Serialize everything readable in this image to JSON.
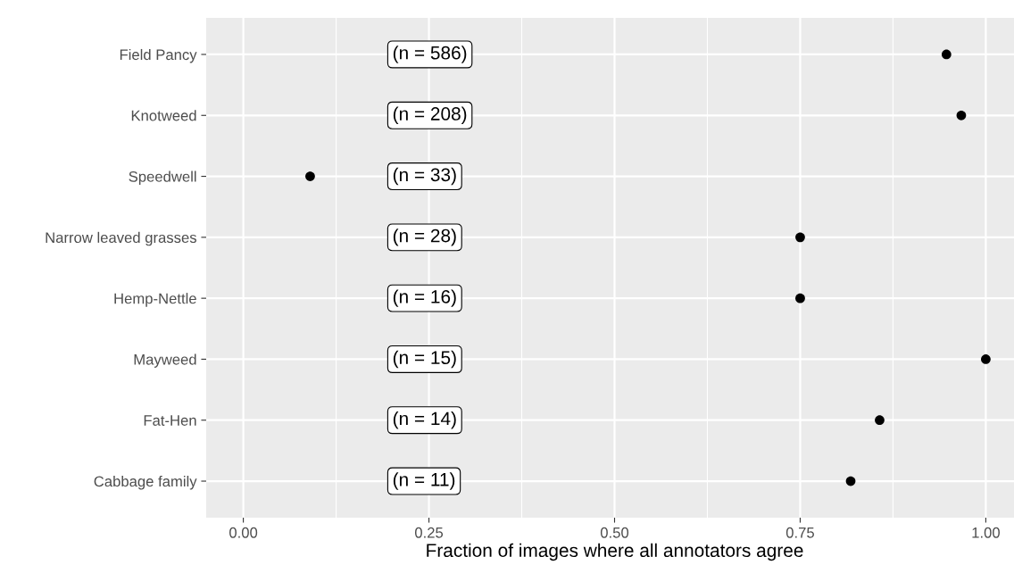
{
  "chart_data": {
    "type": "scatter",
    "xlabel": "Fraction of images where all annotators agree",
    "categories": [
      "Field Pancy",
      "Knotweed",
      "Speedwell",
      "Narrow leaved grasses",
      "Hemp-Nettle",
      "Mayweed",
      "Fat-Hen",
      "Cabbage family"
    ],
    "series": [
      {
        "color": "#000000",
        "values": [
          0.947,
          0.967,
          0.09,
          0.75,
          0.75,
          1.0,
          0.857,
          0.818
        ]
      }
    ],
    "orientation": "horizontal",
    "xlim": [
      -0.05,
      1.05
    ],
    "xticks": [
      {
        "value": 0,
        "label": "0.00"
      },
      {
        "value": 0.25,
        "label": "0.25"
      },
      {
        "value": 0.5,
        "label": "0.50"
      },
      {
        "value": 0.75,
        "label": "0.75"
      },
      {
        "value": 1,
        "label": "1.00"
      }
    ],
    "grid": true,
    "marker": "circle",
    "annotations": [
      "(n = 586)",
      "(n = 208)",
      "(n = 33)",
      "(n = 28)",
      "(n = 16)",
      "(n = 15)",
      "(n = 14)",
      "(n = 11)"
    ]
  }
}
